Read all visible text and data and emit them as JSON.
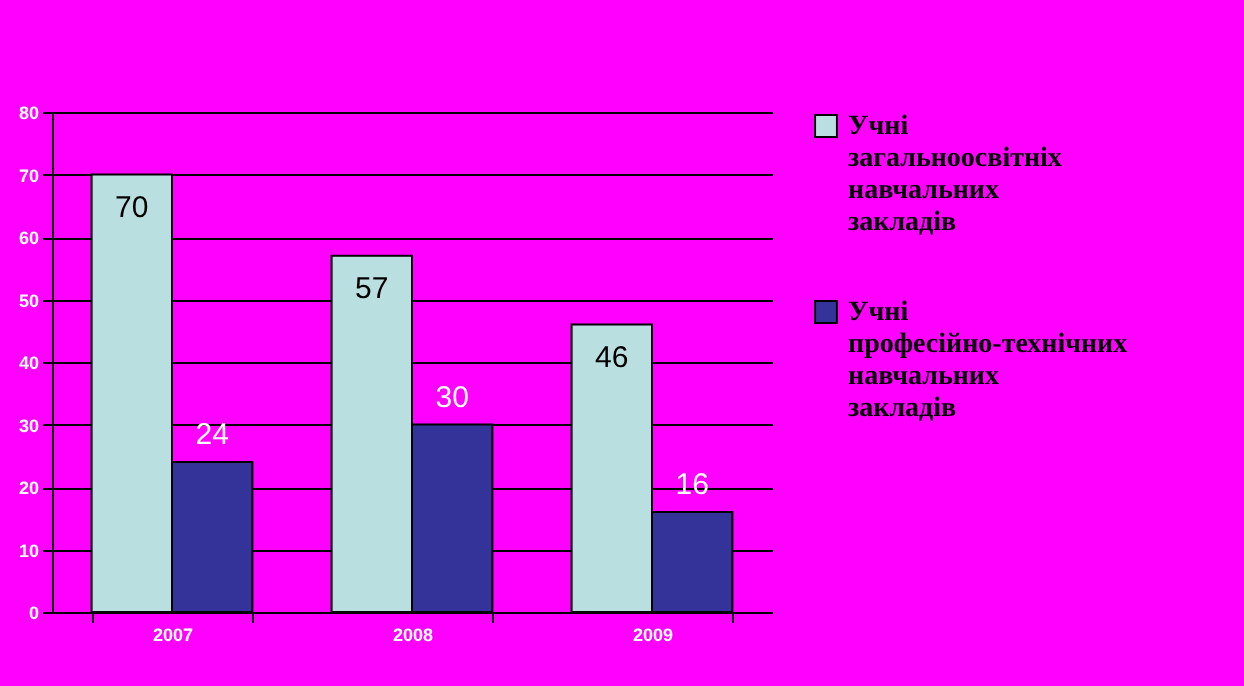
{
  "chart_data": {
    "type": "bar",
    "categories": [
      "2007",
      "2008",
      "2009"
    ],
    "series": [
      {
        "name": "Учні загальноосвітніх навчальних закладів",
        "color": "#b9dfe0",
        "values": [
          70,
          57,
          46
        ]
      },
      {
        "name": "Учні професійно-технічних навчальних закладів",
        "color": "#333399",
        "values": [
          24,
          30,
          16
        ]
      }
    ],
    "ylim": [
      0,
      80
    ],
    "yticks": [
      0,
      10,
      20,
      30,
      40,
      50,
      60,
      70,
      80
    ],
    "grid": "y",
    "legend": "right",
    "data_labels": true
  }
}
